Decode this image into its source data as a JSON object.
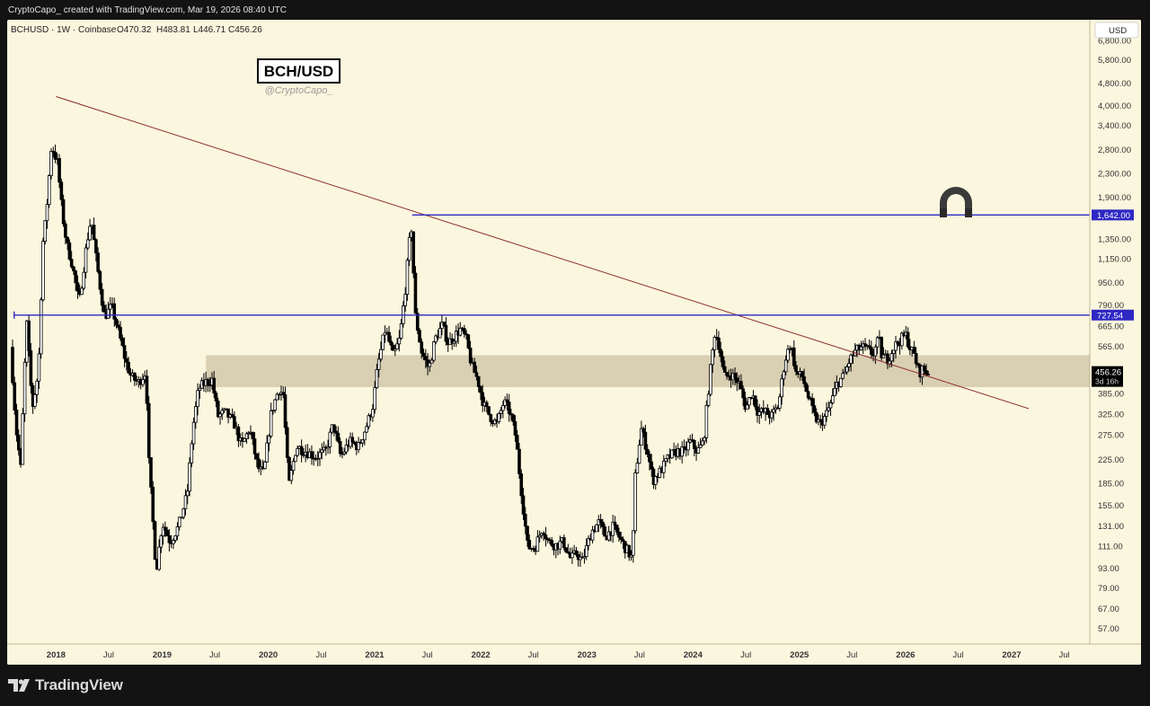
{
  "header": {
    "credit": "CryptoCapo_ created with TradingView.com, Mar 19, 2026 08:40 UTC"
  },
  "symbol_bar": {
    "symbol": "BCHUSD · 1W · Coinbase",
    "open": "O470.32",
    "high": "H483.81",
    "low": "L446.71",
    "close": "C456.26"
  },
  "annotation": {
    "title": "BCH/USD",
    "handle": "@CryptoCapo_"
  },
  "currency": "USD",
  "footer": {
    "brand": "TradingView"
  },
  "colors": {
    "background": "#fbf6de",
    "frame": "#131313",
    "level_line": "#2e28c4",
    "trend_line": "#8b2a2a",
    "zone": "#d9cfb3",
    "candle": "#000000"
  },
  "chart_data": {
    "type": "candlestick",
    "scale": "log",
    "ylim": [
      52,
      7800
    ],
    "y_ticks": [
      "6,800.00",
      "5,800.00",
      "4,800.00",
      "4,000.00",
      "3,400.00",
      "2,800.00",
      "2,300.00",
      "1,900.00",
      "1,350.00",
      "1,150.00",
      "950.00",
      "790.00",
      "665.00",
      "565.00",
      "385.00",
      "325.00",
      "275.00",
      "225.00",
      "185.00",
      "155.00",
      "131.00",
      "111.00",
      "93.00",
      "79.00",
      "67.00",
      "57.00"
    ],
    "x_ticks": [
      {
        "date": "2018-01-01",
        "label": "2018",
        "year": true
      },
      {
        "date": "2018-07-01",
        "label": "Jul",
        "year": false
      },
      {
        "date": "2019-01-01",
        "label": "2019",
        "year": true
      },
      {
        "date": "2019-07-01",
        "label": "Jul",
        "year": false
      },
      {
        "date": "2020-01-01",
        "label": "2020",
        "year": true
      },
      {
        "date": "2020-07-01",
        "label": "Jul",
        "year": false
      },
      {
        "date": "2021-01-01",
        "label": "2021",
        "year": true
      },
      {
        "date": "2021-07-01",
        "label": "Jul",
        "year": false
      },
      {
        "date": "2022-01-01",
        "label": "2022",
        "year": true
      },
      {
        "date": "2022-07-01",
        "label": "Jul",
        "year": false
      },
      {
        "date": "2023-01-01",
        "label": "2023",
        "year": true
      },
      {
        "date": "2023-07-01",
        "label": "Jul",
        "year": false
      },
      {
        "date": "2024-01-01",
        "label": "2024",
        "year": true
      },
      {
        "date": "2024-07-01",
        "label": "Jul",
        "year": false
      },
      {
        "date": "2025-01-01",
        "label": "2025",
        "year": true
      },
      {
        "date": "2025-07-01",
        "label": "Jul",
        "year": false
      },
      {
        "date": "2026-01-01",
        "label": "2026",
        "year": true
      },
      {
        "date": "2026-07-01",
        "label": "Jul",
        "year": false
      },
      {
        "date": "2027-01-01",
        "label": "2027",
        "year": true
      },
      {
        "date": "2027-07-01",
        "label": "Jul",
        "year": false
      }
    ],
    "price_path": [
      [
        "2017-08-01",
        560
      ],
      [
        "2017-08-20",
        290
      ],
      [
        "2017-09-05",
        210
      ],
      [
        "2017-09-25",
        700
      ],
      [
        "2017-10-15",
        340
      ],
      [
        "2017-11-05",
        460
      ],
      [
        "2017-11-20",
        1300
      ],
      [
        "2017-12-01",
        1600
      ],
      [
        "2017-12-20",
        2900
      ],
      [
        "2018-01-10",
        2500
      ],
      [
        "2018-01-25",
        1700
      ],
      [
        "2018-02-10",
        1300
      ],
      [
        "2018-03-01",
        1100
      ],
      [
        "2018-03-25",
        800
      ],
      [
        "2018-04-20",
        1300
      ],
      [
        "2018-05-05",
        1600
      ],
      [
        "2018-05-25",
        1100
      ],
      [
        "2018-06-20",
        720
      ],
      [
        "2018-07-15",
        780
      ],
      [
        "2018-08-10",
        620
      ],
      [
        "2018-09-01",
        500
      ],
      [
        "2018-09-20",
        440
      ],
      [
        "2018-10-15",
        420
      ],
      [
        "2018-11-10",
        460
      ],
      [
        "2018-11-20",
        220
      ],
      [
        "2018-12-01",
        150
      ],
      [
        "2018-12-15",
        90
      ],
      [
        "2019-01-05",
        135
      ],
      [
        "2019-02-01",
        115
      ],
      [
        "2019-03-01",
        130
      ],
      [
        "2019-04-01",
        170
      ],
      [
        "2019-04-20",
        290
      ],
      [
        "2019-05-10",
        400
      ],
      [
        "2019-06-01",
        420
      ],
      [
        "2019-06-25",
        430
      ],
      [
        "2019-07-15",
        320
      ],
      [
        "2019-08-10",
        330
      ],
      [
        "2019-09-10",
        300
      ],
      [
        "2019-10-05",
        250
      ],
      [
        "2019-11-01",
        290
      ],
      [
        "2019-11-30",
        210
      ],
      [
        "2019-12-20",
        200
      ],
      [
        "2020-01-15",
        330
      ],
      [
        "2020-02-10",
        400
      ],
      [
        "2020-02-25",
        380
      ],
      [
        "2020-03-15",
        180
      ],
      [
        "2020-04-10",
        250
      ],
      [
        "2020-05-15",
        240
      ],
      [
        "2020-06-15",
        230
      ],
      [
        "2020-07-20",
        240
      ],
      [
        "2020-08-15",
        300
      ],
      [
        "2020-09-10",
        230
      ],
      [
        "2020-10-10",
        260
      ],
      [
        "2020-11-10",
        250
      ],
      [
        "2020-12-10",
        300
      ],
      [
        "2020-12-30",
        350
      ],
      [
        "2021-01-15",
        480
      ],
      [
        "2021-02-10",
        650
      ],
      [
        "2021-03-10",
        520
      ],
      [
        "2021-04-01",
        600
      ],
      [
        "2021-04-20",
        900
      ],
      [
        "2021-05-10",
        1550
      ],
      [
        "2021-05-25",
        720
      ],
      [
        "2021-06-15",
        540
      ],
      [
        "2021-07-10",
        470
      ],
      [
        "2021-08-01",
        600
      ],
      [
        "2021-08-25",
        670
      ],
      [
        "2021-09-15",
        580
      ],
      [
        "2021-10-05",
        610
      ],
      [
        "2021-10-25",
        650
      ],
      [
        "2021-11-15",
        600
      ],
      [
        "2021-12-05",
        480
      ],
      [
        "2021-12-25",
        430
      ],
      [
        "2022-01-15",
        350
      ],
      [
        "2022-02-05",
        320
      ],
      [
        "2022-03-01",
        300
      ],
      [
        "2022-03-25",
        360
      ],
      [
        "2022-04-15",
        330
      ],
      [
        "2022-05-05",
        270
      ],
      [
        "2022-05-20",
        190
      ],
      [
        "2022-06-15",
        110
      ],
      [
        "2022-07-10",
        110
      ],
      [
        "2022-08-05",
        130
      ],
      [
        "2022-08-25",
        115
      ],
      [
        "2022-09-20",
        112
      ],
      [
        "2022-10-15",
        115
      ],
      [
        "2022-11-10",
        100
      ],
      [
        "2022-11-30",
        105
      ],
      [
        "2022-12-20",
        98
      ],
      [
        "2023-01-20",
        125
      ],
      [
        "2023-02-15",
        135
      ],
      [
        "2023-03-10",
        120
      ],
      [
        "2023-04-05",
        130
      ],
      [
        "2023-05-05",
        115
      ],
      [
        "2023-06-10",
        100
      ],
      [
        "2023-06-20",
        195
      ],
      [
        "2023-07-10",
        290
      ],
      [
        "2023-08-01",
        240
      ],
      [
        "2023-08-20",
        190
      ],
      [
        "2023-09-15",
        205
      ],
      [
        "2023-10-15",
        230
      ],
      [
        "2023-11-10",
        240
      ],
      [
        "2023-12-05",
        240
      ],
      [
        "2023-12-25",
        260
      ],
      [
        "2024-01-20",
        240
      ],
      [
        "2024-02-10",
        260
      ],
      [
        "2024-03-01",
        430
      ],
      [
        "2024-03-20",
        640
      ],
      [
        "2024-04-05",
        560
      ],
      [
        "2024-04-20",
        440
      ],
      [
        "2024-05-15",
        450
      ],
      [
        "2024-06-10",
        420
      ],
      [
        "2024-07-05",
        340
      ],
      [
        "2024-07-25",
        390
      ],
      [
        "2024-08-15",
        330
      ],
      [
        "2024-09-10",
        330
      ],
      [
        "2024-10-01",
        320
      ],
      [
        "2024-10-25",
        350
      ],
      [
        "2024-11-15",
        500
      ],
      [
        "2024-12-05",
        580
      ],
      [
        "2024-12-25",
        450
      ],
      [
        "2025-01-15",
        440
      ],
      [
        "2025-02-05",
        370
      ],
      [
        "2025-02-25",
        320
      ],
      [
        "2025-03-15",
        300
      ],
      [
        "2025-04-05",
        320
      ],
      [
        "2025-04-25",
        360
      ],
      [
        "2025-05-15",
        420
      ],
      [
        "2025-06-05",
        440
      ],
      [
        "2025-06-25",
        500
      ],
      [
        "2025-07-15",
        540
      ],
      [
        "2025-08-05",
        560
      ],
      [
        "2025-08-25",
        550
      ],
      [
        "2025-09-15",
        530
      ],
      [
        "2025-10-05",
        600
      ],
      [
        "2025-10-15",
        520
      ],
      [
        "2025-11-05",
        510
      ],
      [
        "2025-11-25",
        560
      ],
      [
        "2025-12-15",
        590
      ],
      [
        "2026-01-05",
        620
      ],
      [
        "2026-01-20",
        560
      ],
      [
        "2026-02-05",
        520
      ],
      [
        "2026-02-20",
        455
      ],
      [
        "2026-03-05",
        470
      ],
      [
        "2026-03-19",
        456
      ]
    ],
    "levels": [
      {
        "value": 1642,
        "label": "1,642.00",
        "start": "2021-05-10"
      },
      {
        "value": 727.54,
        "label": "727.54",
        "start": "2017-08-10"
      }
    ],
    "trendline": [
      [
        "2018-01-01",
        4300
      ],
      [
        "2027-03-01",
        340
      ]
    ],
    "zone": [
      405,
      525
    ],
    "current_price": {
      "label": "456.26",
      "countdown": "3d 16h",
      "value": 456.26
    }
  }
}
